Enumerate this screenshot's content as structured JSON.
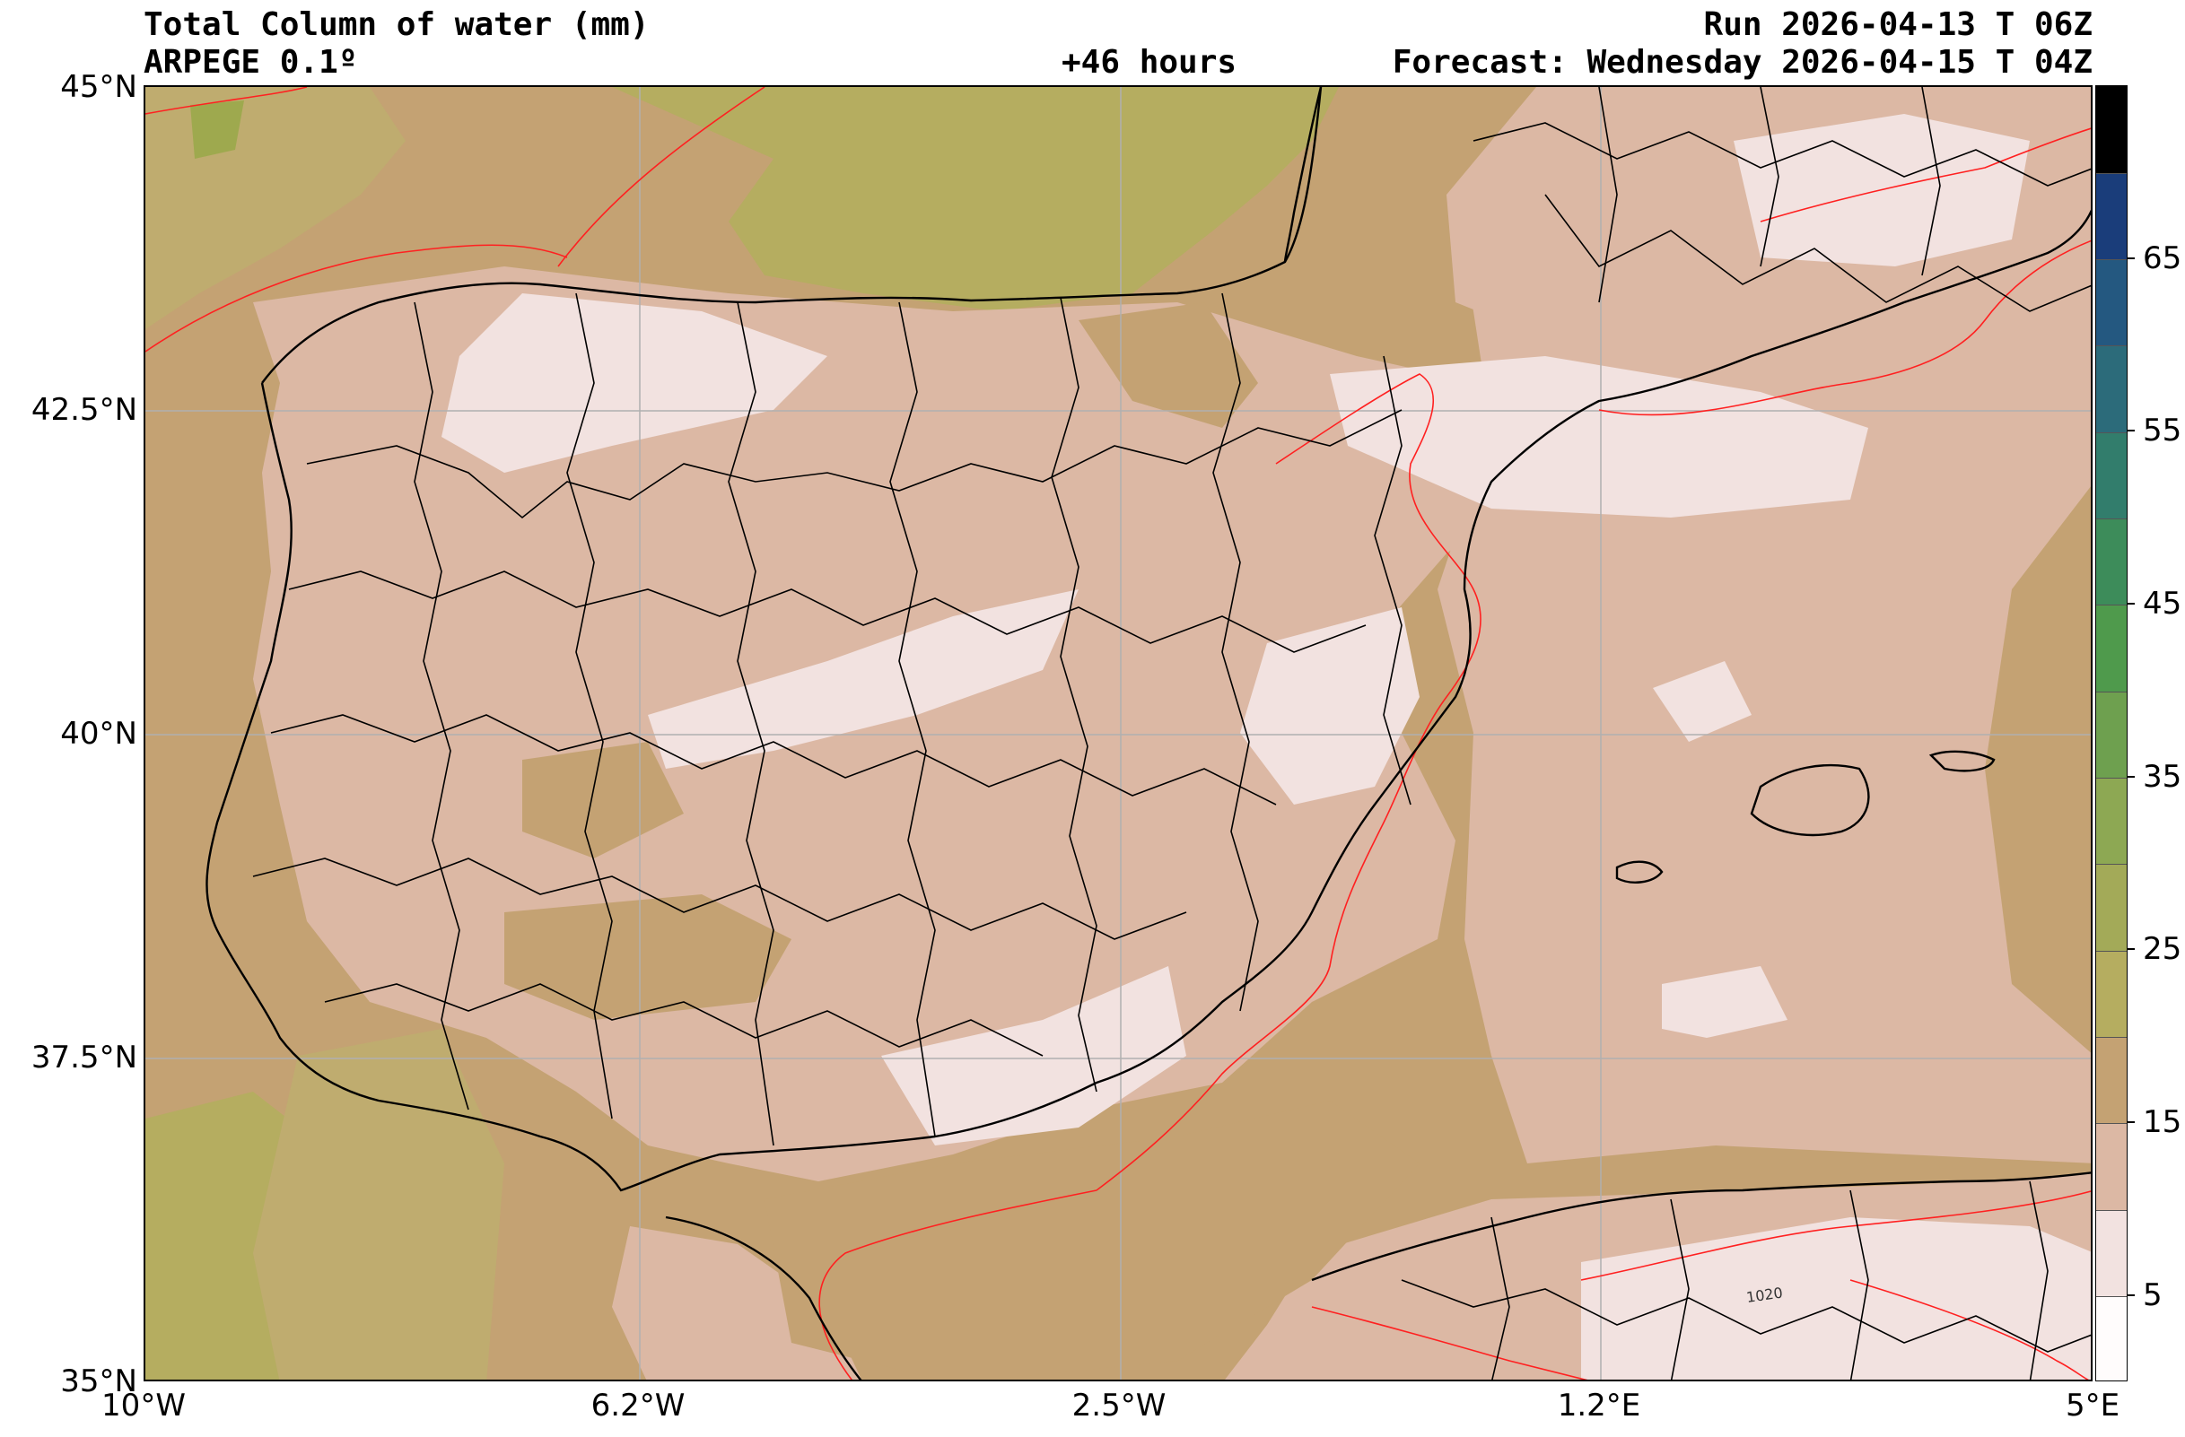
{
  "header": {
    "title": "Total Column of water (mm)",
    "run": "Run 2026-04-13 T 06Z",
    "model": "ARPEGE 0.1º",
    "lead": "+46 hours",
    "forecast": "Forecast: Wednesday 2026-04-15 T 04Z"
  },
  "axes": {
    "lat_ticks": [
      "45°N",
      "42.5°N",
      "40°N",
      "37.5°N",
      "35°N"
    ],
    "lon_ticks": [
      "10°W",
      "6.2°W",
      "2.5°W",
      "1.2°E",
      "5°E"
    ]
  },
  "map": {
    "isobar_label": "1020",
    "colors": {
      "land_base": "#dcb8a4",
      "very_low": "#f2e2e0",
      "sea_low": "#c4a273",
      "moderate": "#bfac6f",
      "higher": "#b5ad60",
      "peak": "#9ea94e",
      "isobar": "#ff2020",
      "borders": "#000000",
      "grid": "#b0b0b0"
    }
  },
  "colorbar": {
    "labels": [
      "65",
      "55",
      "45",
      "35",
      "25",
      "15",
      "5"
    ],
    "colors": [
      "#fffcfc",
      "#f2e2e0",
      "#dcb8a4",
      "#c4a273",
      "#b5ad60",
      "#a3aa58",
      "#8da853",
      "#6ea04f",
      "#4f9a4c",
      "#3d8c5a",
      "#327d6c",
      "#2c6b7a",
      "#245880",
      "#1a3d7a",
      "#000000"
    ]
  }
}
